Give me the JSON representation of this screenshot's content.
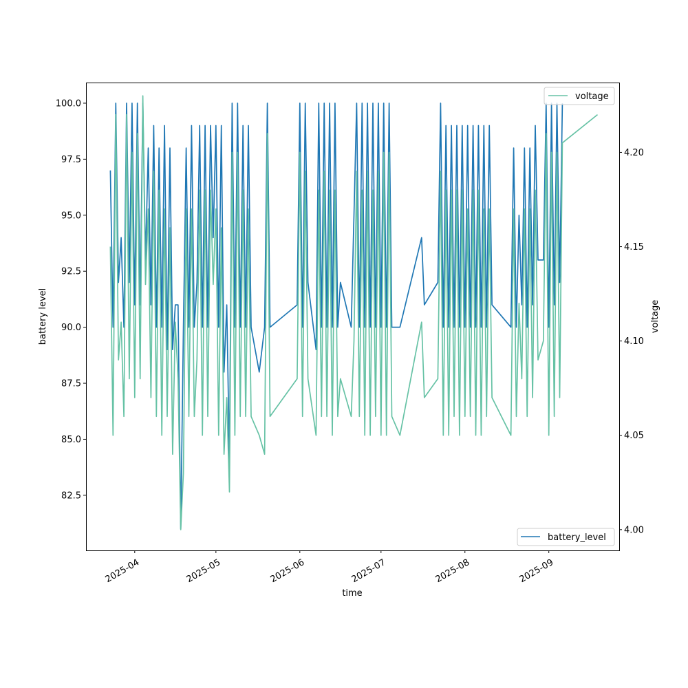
{
  "chart_data": {
    "type": "line",
    "title": "",
    "xlabel": "time",
    "ylabel": "battery level",
    "y2label": "voltage",
    "xlim": [
      "2025-03-14",
      "2025-09-27"
    ],
    "ylim": [
      80.04,
      100.92
    ],
    "y2lim": [
      3.989,
      4.237
    ],
    "xticks": [
      "2025-04",
      "2025-05",
      "2025-06",
      "2025-07",
      "2025-08",
      "2025-09"
    ],
    "xtick_dates": [
      "2025-04-01",
      "2025-05-01",
      "2025-06-01",
      "2025-07-01",
      "2025-08-01",
      "2025-09-01"
    ],
    "yticks": [
      82.5,
      85.0,
      87.5,
      90.0,
      92.5,
      95.0,
      97.5,
      100.0
    ],
    "y2ticks": [
      4.0,
      4.05,
      4.1,
      4.15,
      4.2
    ],
    "grid": false,
    "colors": {
      "battery_level": "#1f77b4",
      "voltage": "#66c2a5"
    },
    "legends": [
      {
        "label": "voltage",
        "placement": "upper right"
      },
      {
        "label": "battery_level",
        "placement": "lower right"
      }
    ],
    "x": [
      "2025-03-23",
      "2025-03-24",
      "2025-03-25",
      "2025-03-26",
      "2025-03-27",
      "2025-03-28",
      "2025-03-29",
      "2025-03-30",
      "2025-03-31",
      "2025-04-01",
      "2025-04-02",
      "2025-04-03",
      "2025-04-04",
      "2025-04-05",
      "2025-04-06",
      "2025-04-07",
      "2025-04-08",
      "2025-04-09",
      "2025-04-10",
      "2025-04-11",
      "2025-04-12",
      "2025-04-13",
      "2025-04-14",
      "2025-04-15",
      "2025-04-16",
      "2025-04-17",
      "2025-04-18",
      "2025-04-19",
      "2025-04-20",
      "2025-04-21",
      "2025-04-22",
      "2025-04-23",
      "2025-04-24",
      "2025-04-25",
      "2025-04-26",
      "2025-04-27",
      "2025-04-28",
      "2025-04-29",
      "2025-04-30",
      "2025-05-01",
      "2025-05-02",
      "2025-05-03",
      "2025-05-04",
      "2025-05-05",
      "2025-05-06",
      "2025-05-07",
      "2025-05-08",
      "2025-05-09",
      "2025-05-10",
      "2025-05-11",
      "2025-05-12",
      "2025-05-13",
      "2025-05-14",
      "2025-05-17",
      "2025-05-19",
      "2025-05-20",
      "2025-05-21",
      "2025-05-31",
      "2025-06-01",
      "2025-06-02",
      "2025-06-03",
      "2025-06-04",
      "2025-06-07",
      "2025-06-08",
      "2025-06-09",
      "2025-06-10",
      "2025-06-11",
      "2025-06-12",
      "2025-06-13",
      "2025-06-14",
      "2025-06-15",
      "2025-06-16",
      "2025-06-20",
      "2025-06-21",
      "2025-06-22",
      "2025-06-23",
      "2025-06-24",
      "2025-06-25",
      "2025-06-26",
      "2025-06-27",
      "2025-06-28",
      "2025-06-29",
      "2025-06-30",
      "2025-07-01",
      "2025-07-02",
      "2025-07-03",
      "2025-07-04",
      "2025-07-05",
      "2025-07-08",
      "2025-07-16",
      "2025-07-17",
      "2025-07-22",
      "2025-07-23",
      "2025-07-24",
      "2025-07-25",
      "2025-07-26",
      "2025-07-27",
      "2025-07-28",
      "2025-07-29",
      "2025-07-30",
      "2025-07-31",
      "2025-08-01",
      "2025-08-02",
      "2025-08-03",
      "2025-08-04",
      "2025-08-05",
      "2025-08-06",
      "2025-08-07",
      "2025-08-08",
      "2025-08-09",
      "2025-08-10",
      "2025-08-11",
      "2025-08-18",
      "2025-08-19",
      "2025-08-20",
      "2025-08-21",
      "2025-08-22",
      "2025-08-23",
      "2025-08-24",
      "2025-08-25",
      "2025-08-26",
      "2025-08-27",
      "2025-08-28",
      "2025-08-30",
      "2025-08-31",
      "2025-09-01",
      "2025-09-02",
      "2025-09-03",
      "2025-09-04",
      "2025-09-05",
      "2025-09-06",
      "2025-09-19"
    ],
    "series": [
      {
        "name": "battery_level",
        "axis": "left",
        "values": [
          97,
          90,
          100,
          92,
          94,
          90,
          100,
          92,
          100,
          91,
          100,
          91,
          100,
          93,
          98,
          91,
          99,
          90,
          98,
          90,
          99,
          89,
          98,
          89,
          91,
          91,
          81,
          90,
          98,
          90,
          99,
          90,
          92,
          99,
          90,
          99,
          90,
          99,
          94,
          99,
          90,
          99,
          88,
          91,
          84,
          100,
          90,
          100,
          90,
          99,
          90,
          99,
          90,
          88,
          90,
          100,
          90,
          91,
          100,
          90,
          100,
          92,
          89,
          100,
          90,
          100,
          90,
          100,
          90,
          100,
          90,
          92,
          90,
          95,
          100,
          90,
          100,
          90,
          100,
          90,
          100,
          90,
          100,
          90,
          100,
          90,
          100,
          90,
          90,
          94,
          91,
          92,
          100,
          90,
          99,
          90,
          99,
          90,
          99,
          90,
          99,
          90,
          99,
          90,
          99,
          90,
          99,
          90,
          99,
          90,
          99,
          91,
          90,
          98,
          90,
          95,
          91,
          98,
          90,
          98,
          91,
          99,
          93,
          93,
          100,
          90,
          100,
          91,
          100,
          92,
          100,
          null
        ]
      },
      {
        "name": "voltage",
        "axis": "right",
        "values": [
          4.15,
          4.05,
          4.22,
          4.09,
          4.11,
          4.06,
          4.22,
          4.08,
          4.2,
          4.07,
          4.21,
          4.08,
          4.23,
          4.13,
          4.17,
          4.07,
          4.19,
          4.06,
          4.18,
          4.05,
          4.17,
          4.06,
          4.16,
          4.04,
          4.11,
          4.08,
          4.0,
          4.03,
          4.17,
          4.06,
          4.17,
          4.06,
          4.09,
          4.18,
          4.05,
          4.18,
          4.06,
          4.18,
          4.13,
          4.17,
          4.05,
          4.16,
          4.04,
          4.07,
          4.02,
          4.2,
          4.05,
          4.2,
          4.06,
          4.18,
          4.06,
          4.17,
          4.06,
          4.05,
          4.04,
          4.21,
          4.06,
          4.08,
          4.2,
          4.06,
          4.19,
          4.08,
          4.05,
          4.18,
          4.06,
          4.19,
          4.06,
          4.18,
          4.05,
          4.18,
          4.06,
          4.08,
          4.06,
          4.1,
          4.19,
          4.06,
          4.18,
          4.05,
          4.19,
          4.05,
          4.18,
          4.06,
          4.19,
          4.05,
          4.2,
          4.05,
          4.2,
          4.06,
          4.05,
          4.11,
          4.07,
          4.08,
          4.19,
          4.05,
          4.18,
          4.05,
          4.18,
          4.06,
          4.18,
          4.05,
          4.18,
          4.06,
          4.17,
          4.06,
          4.18,
          4.05,
          4.18,
          4.05,
          4.17,
          4.06,
          4.17,
          4.07,
          4.05,
          4.17,
          4.06,
          4.12,
          4.08,
          4.17,
          4.06,
          4.17,
          4.07,
          4.18,
          4.09,
          4.1,
          4.21,
          4.05,
          4.2,
          4.06,
          4.2,
          4.07,
          4.205,
          4.22
        ]
      }
    ]
  }
}
